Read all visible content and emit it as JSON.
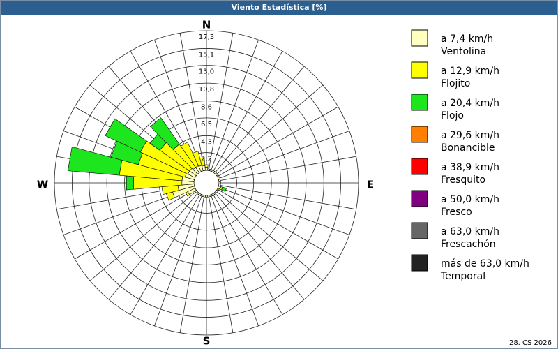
{
  "chart_data": {
    "type": "windrose",
    "title": "Viento Estadística [%]",
    "footer": "28. CS 2026",
    "compass": {
      "N": "N",
      "E": "E",
      "S": "S",
      "W": "W"
    },
    "categories": [
      null,
      null,
      null,
      null,
      null,
      null,
      null,
      null,
      null,
      null,
      null,
      null,
      null,
      null,
      null,
      null,
      null,
      null,
      null,
      null,
      null,
      null,
      null,
      null,
      null,
      null,
      null,
      null,
      null,
      null,
      null,
      null,
      null,
      null,
      null,
      null
    ],
    "ylim": [
      0,
      17.3
    ],
    "yticks": [
      {
        "value": 2.2,
        "label": "2,2"
      },
      {
        "value": 4.3,
        "label": "4,3"
      },
      {
        "value": 6.5,
        "label": "6,5"
      },
      {
        "value": 8.6,
        "label": "8,6"
      },
      {
        "value": 10.8,
        "label": "10,8"
      },
      {
        "value": 13.0,
        "label": "13,0"
      },
      {
        "value": 15.1,
        "label": "15,1"
      },
      {
        "value": 17.3,
        "label": "17,3"
      }
    ],
    "grid": true,
    "legend": "right",
    "series": [
      {
        "name": "a 7,4 km/h",
        "description": "Ventolina",
        "color": "#ffffc0",
        "values": [
          0.4,
          0.2,
          0.2,
          0.2,
          0.2,
          0.2,
          0.2,
          0.2,
          0.2,
          0.2,
          0.2,
          0.3,
          0.2,
          0.2,
          0.2,
          0.2,
          0.2,
          0.2,
          0.2,
          0.2,
          0.2,
          0.2,
          0.2,
          0.2,
          1.0,
          2.8,
          2.0,
          1.5,
          1.5,
          1.2,
          1.0,
          1.0,
          0.8,
          0.8,
          0.7,
          0.6
        ]
      },
      {
        "name": "a 12,9 km/h",
        "description": "Flojito",
        "color": "#ffff00",
        "values": [
          0.3,
          0,
          0,
          0,
          0,
          0,
          0,
          0,
          0,
          0,
          0,
          0.2,
          0,
          0,
          0,
          0,
          0,
          0,
          0,
          0,
          0,
          0,
          0,
          0,
          0.3,
          0.8,
          2.0,
          6.0,
          7.8,
          6.0,
          6.5,
          4.5,
          3.5,
          3.2,
          1.8,
          1.0
        ]
      },
      {
        "name": "a 20,4 km/h",
        "description": "Flojo",
        "color": "#1ee61e",
        "values": [
          0,
          0,
          0,
          0,
          0,
          0,
          0,
          0,
          0,
          0,
          0,
          0.5,
          0,
          0,
          0,
          0,
          0,
          0,
          0,
          0,
          0,
          0,
          0,
          0,
          0,
          0,
          0,
          0.9,
          6.4,
          3.5,
          4.8,
          1.5,
          4.0,
          0,
          0,
          0
        ]
      },
      {
        "name": "a 29,6 km/h",
        "description": "Bonancible",
        "color": "#ff8000",
        "values": [
          0,
          0,
          0,
          0,
          0,
          0,
          0,
          0,
          0,
          0,
          0,
          0,
          0,
          0,
          0,
          0,
          0,
          0,
          0,
          0,
          0,
          0,
          0,
          0,
          0,
          0,
          0,
          0,
          0,
          0,
          0,
          0,
          0,
          0,
          0,
          0
        ]
      },
      {
        "name": "a 38,9 km/h",
        "description": "Fresquito",
        "color": "#ff0000",
        "values": [
          0,
          0,
          0,
          0,
          0,
          0,
          0,
          0,
          0,
          0,
          0,
          0,
          0,
          0,
          0,
          0,
          0,
          0,
          0,
          0,
          0,
          0,
          0,
          0,
          0,
          0,
          0,
          0,
          0,
          0,
          0,
          0,
          0,
          0,
          0,
          0
        ]
      },
      {
        "name": "a 50,0 km/h",
        "description": "Fresco",
        "color": "#800080",
        "values": [
          0,
          0,
          0,
          0,
          0,
          0,
          0,
          0,
          0,
          0,
          0,
          0,
          0,
          0,
          0,
          0,
          0,
          0,
          0,
          0,
          0,
          0,
          0,
          0,
          0,
          0,
          0,
          0,
          0,
          0,
          0,
          0,
          0,
          0,
          0,
          0
        ]
      },
      {
        "name": "a 63,0 km/h",
        "description": "Frescachón",
        "color": "#666666",
        "values": [
          0,
          0,
          0,
          0,
          0,
          0,
          0,
          0,
          0,
          0,
          0,
          0,
          0,
          0,
          0,
          0,
          0,
          0,
          0,
          0,
          0,
          0,
          0,
          0,
          0,
          0,
          0,
          0,
          0,
          0,
          0,
          0,
          0,
          0,
          0,
          0
        ]
      },
      {
        "name": "más de 63,0 km/h",
        "description": "Temporal",
        "color": "#222222",
        "values": [
          0,
          0,
          0,
          0,
          0,
          0,
          0,
          0,
          0,
          0,
          0,
          0,
          0,
          0,
          0,
          0,
          0,
          0,
          0,
          0,
          0,
          0,
          0,
          0,
          0,
          0,
          0,
          0,
          0,
          0,
          0,
          0,
          0,
          0,
          0,
          0
        ]
      }
    ]
  }
}
